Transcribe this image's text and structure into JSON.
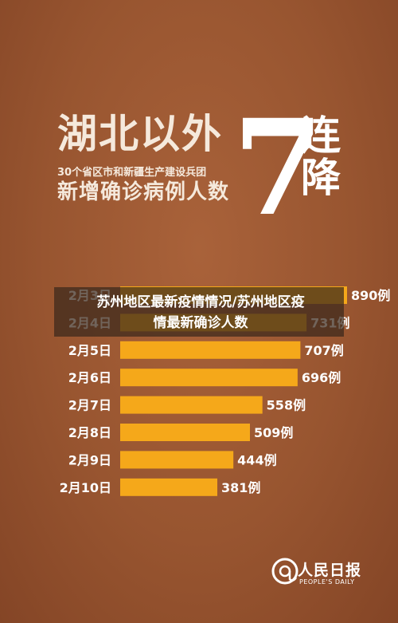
{
  "headline": {
    "main": "湖北以外",
    "sub": "30个省区市和新疆生产建设兵团",
    "third": "新增确诊病例人数",
    "number": "7",
    "chars": [
      "连",
      "降"
    ]
  },
  "overlay": {
    "line1": "苏州地区最新疫情情况/苏州地区疫",
    "line2": "情最新确诊人数"
  },
  "logo": {
    "name": "人民日报",
    "sub": "PEOPLE'S DAILY"
  },
  "colors": {
    "bar": "#f5a81a",
    "background": "#985530",
    "text": "#ffffff"
  },
  "chart_data": {
    "type": "bar",
    "orientation": "horizontal",
    "categories": [
      "2月3日",
      "2月4日",
      "2月5日",
      "2月6日",
      "2月7日",
      "2月8日",
      "2月9日",
      "2月10日"
    ],
    "values": [
      890,
      731,
      707,
      696,
      558,
      509,
      444,
      381
    ],
    "value_labels": [
      "890例",
      "731例",
      "707例",
      "696例",
      "558例",
      "509例",
      "444例",
      "381例"
    ],
    "xlim": [
      0,
      890
    ]
  }
}
